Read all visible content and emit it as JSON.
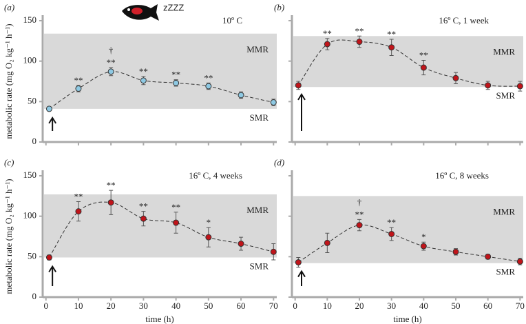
{
  "chart_data": [
    {
      "type": "scatter",
      "label": "(a)",
      "subtitle": "10º C",
      "icon_text": "zZZZ",
      "y_label": "metabolic rate (mg O₂ kg⁻¹ h⁻¹)",
      "x": [
        1,
        10,
        20,
        30,
        40,
        50,
        60,
        70
      ],
      "values": [
        41,
        66,
        87,
        76,
        73,
        69,
        58,
        49
      ],
      "errors": [
        2,
        4,
        5,
        5,
        4,
        4,
        4,
        4
      ],
      "color": "#8ec9e3",
      "band": {
        "smr": 41,
        "mmr": 134,
        "smr_label": "SMR",
        "mmr_label": "MMR"
      },
      "annotations": [
        {
          "x": 10,
          "text": "**"
        },
        {
          "x": 20,
          "text": "**"
        },
        {
          "x": 20,
          "text": "†"
        },
        {
          "x": 30,
          "text": "**"
        },
        {
          "x": 40,
          "text": "**"
        },
        {
          "x": 50,
          "text": "**"
        }
      ],
      "xlim": [
        -1,
        71
      ],
      "ylim": [
        0,
        150
      ],
      "xticks": [
        0,
        10,
        20,
        30,
        40,
        50,
        60,
        70
      ],
      "yticks": [
        0,
        50,
        100,
        150
      ],
      "show_ytick_labels": true,
      "show_xtick_labels": false
    },
    {
      "type": "scatter",
      "label": "(b)",
      "subtitle": "16º C, 1 week",
      "x": [
        1,
        10,
        20,
        30,
        40,
        50,
        60,
        70
      ],
      "values": [
        70,
        121,
        124,
        117,
        92,
        79,
        70,
        69
      ],
      "errors": [
        5,
        7,
        7,
        10,
        9,
        7,
        5,
        6
      ],
      "color": "#c0141a",
      "band": {
        "smr": 68,
        "mmr": 131,
        "smr_label": "SMR",
        "mmr_label": "MMR"
      },
      "annotations": [
        {
          "x": 10,
          "text": "**"
        },
        {
          "x": 20,
          "text": "**"
        },
        {
          "x": 30,
          "text": "**"
        },
        {
          "x": 40,
          "text": "**"
        }
      ],
      "xlim": [
        -1,
        71
      ],
      "ylim": [
        0,
        150
      ],
      "xticks": [
        0,
        10,
        20,
        30,
        40,
        50,
        60,
        70
      ],
      "yticks": [
        0,
        50,
        100,
        150
      ],
      "show_ytick_labels": false,
      "show_xtick_labels": false
    },
    {
      "type": "scatter",
      "label": "(c)",
      "subtitle": "16º C, 4 weeks",
      "y_label": "metabolic rate (mg O₂ kg⁻¹ h⁻¹)",
      "x_label": "time (h)",
      "x": [
        1,
        10,
        20,
        30,
        40,
        50,
        60,
        70
      ],
      "values": [
        49,
        106,
        117,
        97,
        92,
        74,
        66,
        56
      ],
      "errors": [
        3,
        12,
        15,
        9,
        13,
        12,
        8,
        10
      ],
      "color": "#c0141a",
      "band": {
        "smr": 49,
        "mmr": 127,
        "smr_label": "SMR",
        "mmr_label": "MMR"
      },
      "annotations": [
        {
          "x": 10,
          "text": "**"
        },
        {
          "x": 20,
          "text": "**"
        },
        {
          "x": 30,
          "text": "**"
        },
        {
          "x": 40,
          "text": "**"
        },
        {
          "x": 50,
          "text": "*"
        }
      ],
      "xlim": [
        -1,
        71
      ],
      "ylim": [
        0,
        150
      ],
      "xticks": [
        0,
        10,
        20,
        30,
        40,
        50,
        60,
        70
      ],
      "yticks": [
        0,
        50,
        100,
        150
      ],
      "show_ytick_labels": true,
      "show_xtick_labels": true
    },
    {
      "type": "scatter",
      "label": "(d)",
      "subtitle": "16º C, 8 weeks",
      "x_label": "time (h)",
      "x": [
        1,
        10,
        20,
        30,
        40,
        50,
        60,
        70
      ],
      "values": [
        43,
        67,
        89,
        78,
        63,
        56,
        50,
        44
      ],
      "errors": [
        6,
        12,
        7,
        8,
        5,
        4,
        3,
        4
      ],
      "color": "#c0141a",
      "band": {
        "smr": 42,
        "mmr": 125,
        "smr_label": "SMR",
        "mmr_label": "MMR"
      },
      "annotations": [
        {
          "x": 20,
          "text": "**"
        },
        {
          "x": 20,
          "text": "†"
        },
        {
          "x": 30,
          "text": "**"
        },
        {
          "x": 40,
          "text": "*"
        }
      ],
      "xlim": [
        -1,
        71
      ],
      "ylim": [
        0,
        150
      ],
      "xticks": [
        0,
        10,
        20,
        30,
        40,
        50,
        60,
        70
      ],
      "yticks": [
        0,
        50,
        100,
        150
      ],
      "show_ytick_labels": false,
      "show_xtick_labels": true
    }
  ]
}
